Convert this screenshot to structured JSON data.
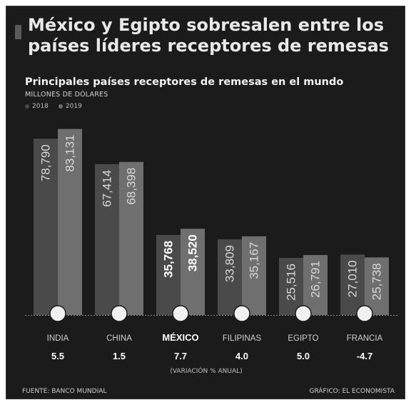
{
  "headline": "México y Egipto sobresalen entre los países líderes receptores de remesas",
  "chart_data": {
    "type": "bar",
    "title": "Principales países receptores de remesas en el mundo",
    "unit": "MILLONES DE DÓLARES",
    "categories": [
      "INDIA",
      "CHINA",
      "MÉXICO",
      "FILIPINAS",
      "EGIPTO",
      "FRANCIA"
    ],
    "series": [
      {
        "name": "2018",
        "values": [
          78790,
          67414,
          35768,
          33809,
          25516,
          27010
        ]
      },
      {
        "name": "2019",
        "values": [
          83131,
          68398,
          38520,
          35167,
          26791,
          25738
        ]
      }
    ],
    "value_labels": {
      "2018": [
        "78,790",
        "67,414",
        "35,768",
        "33,809",
        "25,516",
        "27,010"
      ],
      "2019": [
        "83,131",
        "68,398",
        "38,520",
        "35,167",
        "26,791",
        "25,738"
      ]
    },
    "variation": [
      "5.5",
      "1.5",
      "7.7",
      "4.0",
      "5.0",
      "-4.7"
    ],
    "variation_label": "(VARIACIÓN % ANUAL)",
    "highlight": "MÉXICO",
    "ylim": [
      0,
      90000
    ],
    "legend_placement": "top-left",
    "colors": {
      "2018": "#4a4a4a",
      "2019": "#6f6f6f",
      "highlight": "#ffffff",
      "text": "#d9d9d9"
    }
  },
  "footer": {
    "source": "FUENTE: BANCO MUNDIAL",
    "credit": "GRÁFICO: EL ECONOMISTA"
  }
}
